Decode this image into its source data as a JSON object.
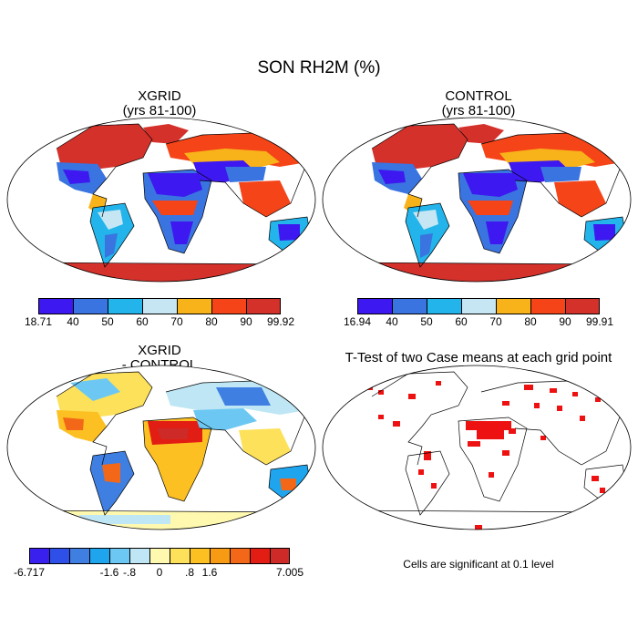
{
  "figure": {
    "title": "SON RH2M (%)"
  },
  "panels": [
    {
      "id": "xgrid",
      "title_line1": "XGRID",
      "title_line2": "(yrs 81-100)",
      "colorbar": {
        "colors": [
          "#3d18f0",
          "#3a74e0",
          "#22b4ea",
          "#c5e6f2",
          "#f8b21a",
          "#f54418",
          "#d4312b"
        ],
        "labels": [
          "18.71",
          "40",
          "50",
          "60",
          "70",
          "80",
          "90",
          "99.92"
        ]
      }
    },
    {
      "id": "control",
      "title_line1": "CONTROL",
      "title_line2": "(yrs 81-100)",
      "colorbar": {
        "colors": [
          "#3d18f0",
          "#3a74e0",
          "#22b4ea",
          "#c5e6f2",
          "#f8b21a",
          "#f54418",
          "#d4312b"
        ],
        "labels": [
          "16.94",
          "40",
          "50",
          "60",
          "70",
          "80",
          "90",
          "99.91"
        ]
      }
    },
    {
      "id": "difference",
      "title_line1": "XGRID",
      "title_line2": "- CONTROL",
      "colorbar": {
        "colors": [
          "#3a20ee",
          "#2e4fe8",
          "#3f7fe2",
          "#1ea5ee",
          "#6cc8f3",
          "#bfe6f4",
          "#fff9b0",
          "#fde15a",
          "#fcc023",
          "#f79a14",
          "#f26818",
          "#e21d13",
          "#cd2a28"
        ],
        "labels": [
          "-6.717",
          "-1.6",
          "-.8",
          "0",
          ".8",
          "1.6",
          "7.005"
        ]
      }
    },
    {
      "id": "ttest",
      "title": "T-Test of two Case means at each grid point",
      "note": "Cells are significant at 0.1 level",
      "color": "#ee1111"
    }
  ]
}
